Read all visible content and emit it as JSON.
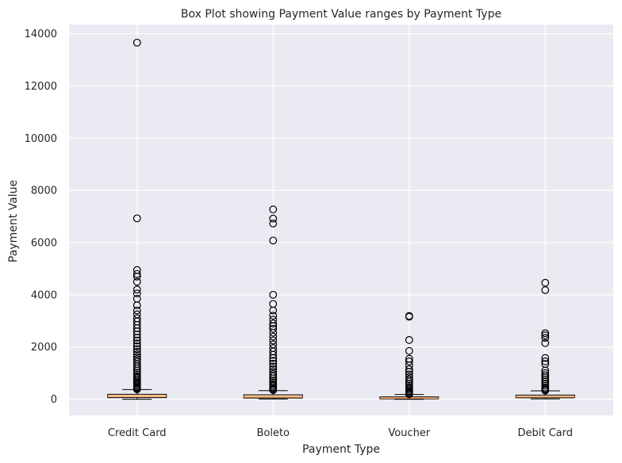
{
  "chart_data": {
    "type": "box",
    "title": "Box Plot showing Payment Value ranges by Payment Type",
    "xlabel": "Payment Type",
    "ylabel": "Payment Value",
    "categories": [
      "Credit Card",
      "Boleto",
      "Voucher",
      "Debit Card"
    ],
    "yticks": [
      0,
      2000,
      4000,
      6000,
      8000,
      10000,
      12000,
      14000
    ],
    "ylim": [
      -620,
      14350
    ],
    "grid": true,
    "colors": {
      "background": "#eaeaf2",
      "grid": "#ffffff",
      "box_fill": "#ffcba4",
      "box_edge": "#000000",
      "median": "#f4a460",
      "flier": "#000000"
    },
    "boxes": [
      {
        "category": "Credit Card",
        "whisker_low": 0,
        "q1": 60,
        "median": 110,
        "q3": 190,
        "whisker_high": 370,
        "outliers": [
          380,
          400,
          430,
          460,
          500,
          550,
          600,
          650,
          700,
          760,
          820,
          880,
          950,
          1020,
          1100,
          1180,
          1260,
          1350,
          1440,
          1530,
          1620,
          1720,
          1820,
          1920,
          2030,
          2140,
          2250,
          2360,
          2480,
          2600,
          2720,
          2850,
          2980,
          3100,
          3250,
          3400,
          3600,
          3850,
          4050,
          4200,
          4500,
          4700,
          4800,
          4950,
          6930,
          13660
        ]
      },
      {
        "category": "Boleto",
        "whisker_low": 10,
        "q1": 45,
        "median": 90,
        "q3": 170,
        "whisker_high": 330,
        "outliers": [
          350,
          380,
          420,
          470,
          520,
          580,
          650,
          720,
          800,
          880,
          960,
          1050,
          1150,
          1250,
          1360,
          1470,
          1580,
          1700,
          1830,
          1960,
          2100,
          2250,
          2400,
          2550,
          2700,
          2800,
          2900,
          3050,
          3200,
          3400,
          3650,
          4000,
          6080,
          6730,
          6920,
          7270
        ]
      },
      {
        "category": "Voucher",
        "whisker_low": 0,
        "q1": 15,
        "median": 40,
        "q3": 90,
        "whisker_high": 180,
        "outliers": [
          190,
          220,
          260,
          300,
          350,
          400,
          460,
          530,
          600,
          680,
          760,
          850,
          950,
          1050,
          1150,
          1300,
          1450,
          1550,
          1850,
          2270,
          3160,
          3190
        ]
      },
      {
        "category": "Debit Card",
        "whisker_low": 15,
        "q1": 55,
        "median": 90,
        "q3": 160,
        "whisker_high": 320,
        "outliers": [
          330,
          360,
          400,
          450,
          520,
          600,
          680,
          760,
          840,
          920,
          1000,
          1100,
          1350,
          1450,
          1580,
          2150,
          2350,
          2450,
          2530,
          4180,
          4460
        ]
      }
    ]
  }
}
